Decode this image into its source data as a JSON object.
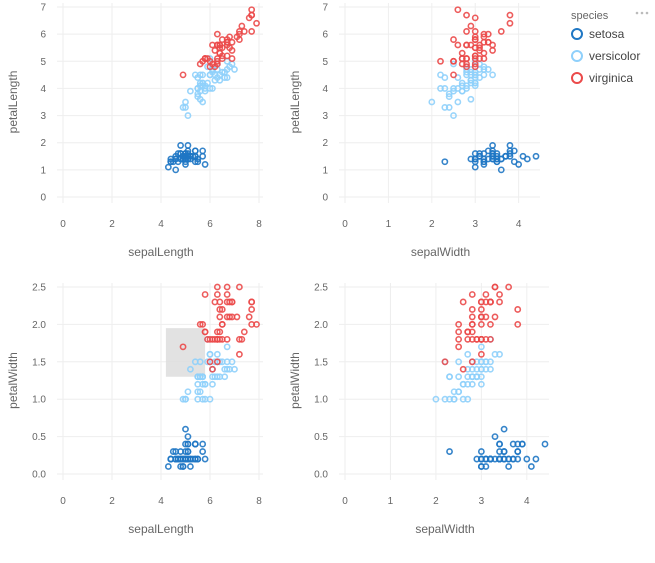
{
  "chart_data": {
    "type": "scatter",
    "panels": [
      {
        "x_field": "sepalLength",
        "y_field": "petalLength",
        "xlabel": "sepalLength",
        "ylabel": "petalLength",
        "xlim": [
          0,
          8
        ],
        "ylim": [
          0,
          7
        ],
        "xticks": [
          0,
          2,
          4,
          6,
          8
        ],
        "yticks": [
          0,
          1,
          2,
          3,
          4,
          5,
          6,
          7
        ],
        "grid": true
      },
      {
        "x_field": "sepalWidth",
        "y_field": "petalLength",
        "xlabel": "sepalWidth",
        "ylabel": "petalLength",
        "xlim": [
          0,
          4.4
        ],
        "ylim": [
          0,
          7
        ],
        "xticks": [
          0,
          1,
          2,
          3,
          4
        ],
        "yticks": [
          0,
          1,
          2,
          3,
          4,
          5,
          6,
          7
        ],
        "grid": true
      },
      {
        "x_field": "sepalLength",
        "y_field": "petalWidth",
        "xlabel": "sepalLength",
        "ylabel": "petalWidth",
        "xlim": [
          0,
          8
        ],
        "ylim": [
          0,
          2.5
        ],
        "xticks": [
          0,
          2,
          4,
          6,
          8
        ],
        "yticks": [
          "0.0",
          "0.5",
          "1.0",
          "1.5",
          "2.0",
          "2.5"
        ],
        "grid": true,
        "brush": {
          "x": [
            4.2,
            5.8
          ],
          "y": [
            1.3,
            1.95
          ]
        }
      },
      {
        "x_field": "sepalWidth",
        "y_field": "petalWidth",
        "xlabel": "sepalWidth",
        "ylabel": "petalWidth",
        "xlim": [
          0,
          4.4
        ],
        "ylim": [
          0,
          2.5
        ],
        "xticks": [
          0,
          1,
          2,
          3,
          4
        ],
        "yticks": [
          "0.0",
          "0.5",
          "1.0",
          "1.5",
          "2.0",
          "2.5"
        ],
        "grid": true
      }
    ],
    "legend": {
      "title": "species",
      "placement": "top-right",
      "items": [
        {
          "label": "setosa",
          "color": "#1f77c4"
        },
        {
          "label": "versicolor",
          "color": "#8fd0fb"
        },
        {
          "label": "virginica",
          "color": "#eb4a4a"
        }
      ]
    },
    "fields": [
      "sepalLength",
      "sepalWidth",
      "petalLength",
      "petalWidth"
    ],
    "series": [
      {
        "name": "setosa",
        "points": [
          [
            5.1,
            3.5,
            1.4,
            0.2
          ],
          [
            4.9,
            3.0,
            1.4,
            0.2
          ],
          [
            4.7,
            3.2,
            1.3,
            0.2
          ],
          [
            4.6,
            3.1,
            1.5,
            0.2
          ],
          [
            5.0,
            3.6,
            1.4,
            0.2
          ],
          [
            5.4,
            3.9,
            1.7,
            0.4
          ],
          [
            4.6,
            3.4,
            1.4,
            0.3
          ],
          [
            5.0,
            3.4,
            1.5,
            0.2
          ],
          [
            4.4,
            2.9,
            1.4,
            0.2
          ],
          [
            4.9,
            3.1,
            1.5,
            0.1
          ],
          [
            5.4,
            3.7,
            1.5,
            0.2
          ],
          [
            4.8,
            3.4,
            1.6,
            0.2
          ],
          [
            4.8,
            3.0,
            1.4,
            0.1
          ],
          [
            4.3,
            3.0,
            1.1,
            0.1
          ],
          [
            5.8,
            4.0,
            1.2,
            0.2
          ],
          [
            5.7,
            4.4,
            1.5,
            0.4
          ],
          [
            5.4,
            3.9,
            1.3,
            0.4
          ],
          [
            5.1,
            3.5,
            1.4,
            0.3
          ],
          [
            5.7,
            3.8,
            1.7,
            0.3
          ],
          [
            5.1,
            3.8,
            1.5,
            0.3
          ],
          [
            5.4,
            3.4,
            1.7,
            0.2
          ],
          [
            5.1,
            3.7,
            1.5,
            0.4
          ],
          [
            4.6,
            3.6,
            1.0,
            0.2
          ],
          [
            5.1,
            3.3,
            1.7,
            0.5
          ],
          [
            4.8,
            3.4,
            1.9,
            0.2
          ],
          [
            5.0,
            3.0,
            1.6,
            0.2
          ],
          [
            5.0,
            3.4,
            1.6,
            0.4
          ],
          [
            5.2,
            3.5,
            1.5,
            0.2
          ],
          [
            5.2,
            3.4,
            1.4,
            0.2
          ],
          [
            4.7,
            3.2,
            1.6,
            0.2
          ],
          [
            4.8,
            3.1,
            1.6,
            0.2
          ],
          [
            5.4,
            3.4,
            1.5,
            0.4
          ],
          [
            5.2,
            4.1,
            1.5,
            0.1
          ],
          [
            5.5,
            4.2,
            1.4,
            0.2
          ],
          [
            4.9,
            3.1,
            1.5,
            0.2
          ],
          [
            5.0,
            3.2,
            1.2,
            0.2
          ],
          [
            5.5,
            3.5,
            1.3,
            0.2
          ],
          [
            4.9,
            3.6,
            1.4,
            0.1
          ],
          [
            4.4,
            3.0,
            1.3,
            0.2
          ],
          [
            5.1,
            3.4,
            1.5,
            0.2
          ],
          [
            5.0,
            3.5,
            1.3,
            0.3
          ],
          [
            4.5,
            2.3,
            1.3,
            0.3
          ],
          [
            4.4,
            3.2,
            1.3,
            0.2
          ],
          [
            5.0,
            3.5,
            1.6,
            0.6
          ],
          [
            5.1,
            3.8,
            1.9,
            0.4
          ],
          [
            4.8,
            3.0,
            1.4,
            0.3
          ],
          [
            5.1,
            3.8,
            1.6,
            0.2
          ],
          [
            4.6,
            3.2,
            1.4,
            0.2
          ],
          [
            5.3,
            3.7,
            1.5,
            0.2
          ],
          [
            5.0,
            3.3,
            1.4,
            0.2
          ]
        ]
      },
      {
        "name": "versicolor",
        "points": [
          [
            7.0,
            3.2,
            4.7,
            1.4
          ],
          [
            6.4,
            3.2,
            4.5,
            1.5
          ],
          [
            6.9,
            3.1,
            4.9,
            1.5
          ],
          [
            5.5,
            2.3,
            4.0,
            1.3
          ],
          [
            6.5,
            2.8,
            4.6,
            1.5
          ],
          [
            5.7,
            2.8,
            4.5,
            1.3
          ],
          [
            6.3,
            3.3,
            4.7,
            1.6
          ],
          [
            4.9,
            2.4,
            3.3,
            1.0
          ],
          [
            6.6,
            2.9,
            4.6,
            1.3
          ],
          [
            5.2,
            2.7,
            3.9,
            1.4
          ],
          [
            5.0,
            2.0,
            3.5,
            1.0
          ],
          [
            5.9,
            3.0,
            4.2,
            1.5
          ],
          [
            6.0,
            2.2,
            4.0,
            1.0
          ],
          [
            6.1,
            2.9,
            4.7,
            1.4
          ],
          [
            5.6,
            2.9,
            3.6,
            1.3
          ],
          [
            6.7,
            3.1,
            4.4,
            1.4
          ],
          [
            5.6,
            3.0,
            4.5,
            1.5
          ],
          [
            5.8,
            2.7,
            4.1,
            1.0
          ],
          [
            6.2,
            2.2,
            4.5,
            1.5
          ],
          [
            5.6,
            2.5,
            3.9,
            1.1
          ],
          [
            5.9,
            3.2,
            4.8,
            1.8
          ],
          [
            6.1,
            2.8,
            4.0,
            1.3
          ],
          [
            6.3,
            2.5,
            4.9,
            1.5
          ],
          [
            6.1,
            2.8,
            4.7,
            1.2
          ],
          [
            6.4,
            2.9,
            4.3,
            1.3
          ],
          [
            6.6,
            3.0,
            4.4,
            1.4
          ],
          [
            6.8,
            2.8,
            4.8,
            1.4
          ],
          [
            6.7,
            3.0,
            5.0,
            1.7
          ],
          [
            6.0,
            2.9,
            4.5,
            1.5
          ],
          [
            5.7,
            2.6,
            3.5,
            1.0
          ],
          [
            5.5,
            2.4,
            3.8,
            1.1
          ],
          [
            5.5,
            2.4,
            3.7,
            1.0
          ],
          [
            5.8,
            2.7,
            3.9,
            1.2
          ],
          [
            6.0,
            2.7,
            5.1,
            1.6
          ],
          [
            5.4,
            3.0,
            4.5,
            1.5
          ],
          [
            6.0,
            3.4,
            4.5,
            1.6
          ],
          [
            6.7,
            3.1,
            4.7,
            1.5
          ],
          [
            6.3,
            2.3,
            4.4,
            1.3
          ],
          [
            5.6,
            3.0,
            4.1,
            1.3
          ],
          [
            5.5,
            2.5,
            4.0,
            1.3
          ],
          [
            5.5,
            2.6,
            4.4,
            1.2
          ],
          [
            6.1,
            3.0,
            4.6,
            1.4
          ],
          [
            5.8,
            2.6,
            4.0,
            1.2
          ],
          [
            5.0,
            2.3,
            3.3,
            1.0
          ],
          [
            5.6,
            2.7,
            4.2,
            1.3
          ],
          [
            5.7,
            3.0,
            4.2,
            1.2
          ],
          [
            5.7,
            2.9,
            4.2,
            1.3
          ],
          [
            6.2,
            2.9,
            4.3,
            1.3
          ],
          [
            5.1,
            2.5,
            3.0,
            1.1
          ],
          [
            5.7,
            2.8,
            4.1,
            1.3
          ]
        ]
      },
      {
        "name": "virginica",
        "points": [
          [
            6.3,
            3.3,
            6.0,
            2.5
          ],
          [
            5.8,
            2.7,
            5.1,
            1.9
          ],
          [
            7.1,
            3.0,
            5.9,
            2.1
          ],
          [
            6.3,
            2.9,
            5.6,
            1.8
          ],
          [
            6.5,
            3.0,
            5.8,
            2.2
          ],
          [
            7.6,
            3.0,
            6.6,
            2.1
          ],
          [
            4.9,
            2.5,
            4.5,
            1.7
          ],
          [
            7.3,
            2.9,
            6.3,
            1.8
          ],
          [
            6.7,
            2.5,
            5.8,
            1.8
          ],
          [
            7.2,
            3.6,
            6.1,
            2.5
          ],
          [
            6.5,
            3.2,
            5.1,
            2.0
          ],
          [
            6.4,
            2.7,
            5.3,
            1.9
          ],
          [
            6.8,
            3.0,
            5.5,
            2.1
          ],
          [
            5.7,
            2.5,
            5.0,
            2.0
          ],
          [
            5.8,
            2.8,
            5.1,
            2.4
          ],
          [
            6.4,
            3.2,
            5.3,
            2.3
          ],
          [
            6.5,
            3.0,
            5.5,
            1.8
          ],
          [
            7.7,
            3.8,
            6.7,
            2.2
          ],
          [
            7.7,
            2.6,
            6.9,
            2.3
          ],
          [
            6.0,
            2.2,
            5.0,
            1.5
          ],
          [
            6.9,
            3.2,
            5.7,
            2.3
          ],
          [
            5.6,
            2.8,
            4.9,
            2.0
          ],
          [
            7.7,
            2.8,
            6.7,
            2.0
          ],
          [
            6.3,
            2.7,
            4.9,
            1.8
          ],
          [
            6.7,
            3.3,
            5.7,
            2.1
          ],
          [
            7.2,
            3.2,
            6.0,
            1.8
          ],
          [
            6.2,
            2.8,
            4.8,
            1.8
          ],
          [
            6.1,
            3.0,
            4.9,
            1.8
          ],
          [
            6.4,
            2.8,
            5.6,
            2.1
          ],
          [
            7.2,
            3.0,
            5.8,
            1.6
          ],
          [
            7.4,
            2.8,
            6.1,
            1.9
          ],
          [
            7.9,
            3.8,
            6.4,
            2.0
          ],
          [
            6.4,
            2.8,
            5.6,
            2.2
          ],
          [
            6.3,
            2.8,
            5.1,
            1.5
          ],
          [
            6.1,
            2.6,
            5.6,
            1.4
          ],
          [
            7.7,
            3.0,
            6.1,
            2.3
          ],
          [
            6.3,
            3.4,
            5.6,
            2.4
          ],
          [
            6.4,
            3.1,
            5.5,
            1.8
          ],
          [
            6.0,
            3.0,
            4.8,
            1.8
          ],
          [
            6.9,
            3.1,
            5.4,
            2.1
          ],
          [
            6.7,
            3.1,
            5.6,
            2.4
          ],
          [
            6.9,
            3.1,
            5.1,
            2.3
          ],
          [
            5.8,
            2.7,
            5.1,
            1.9
          ],
          [
            6.8,
            3.2,
            5.9,
            2.3
          ],
          [
            6.7,
            3.3,
            5.7,
            2.5
          ],
          [
            6.7,
            3.0,
            5.2,
            2.3
          ],
          [
            6.3,
            2.5,
            5.0,
            1.9
          ],
          [
            6.5,
            3.0,
            5.2,
            2.0
          ],
          [
            6.2,
            3.4,
            5.4,
            2.3
          ],
          [
            5.9,
            3.0,
            5.1,
            1.8
          ]
        ]
      }
    ]
  }
}
